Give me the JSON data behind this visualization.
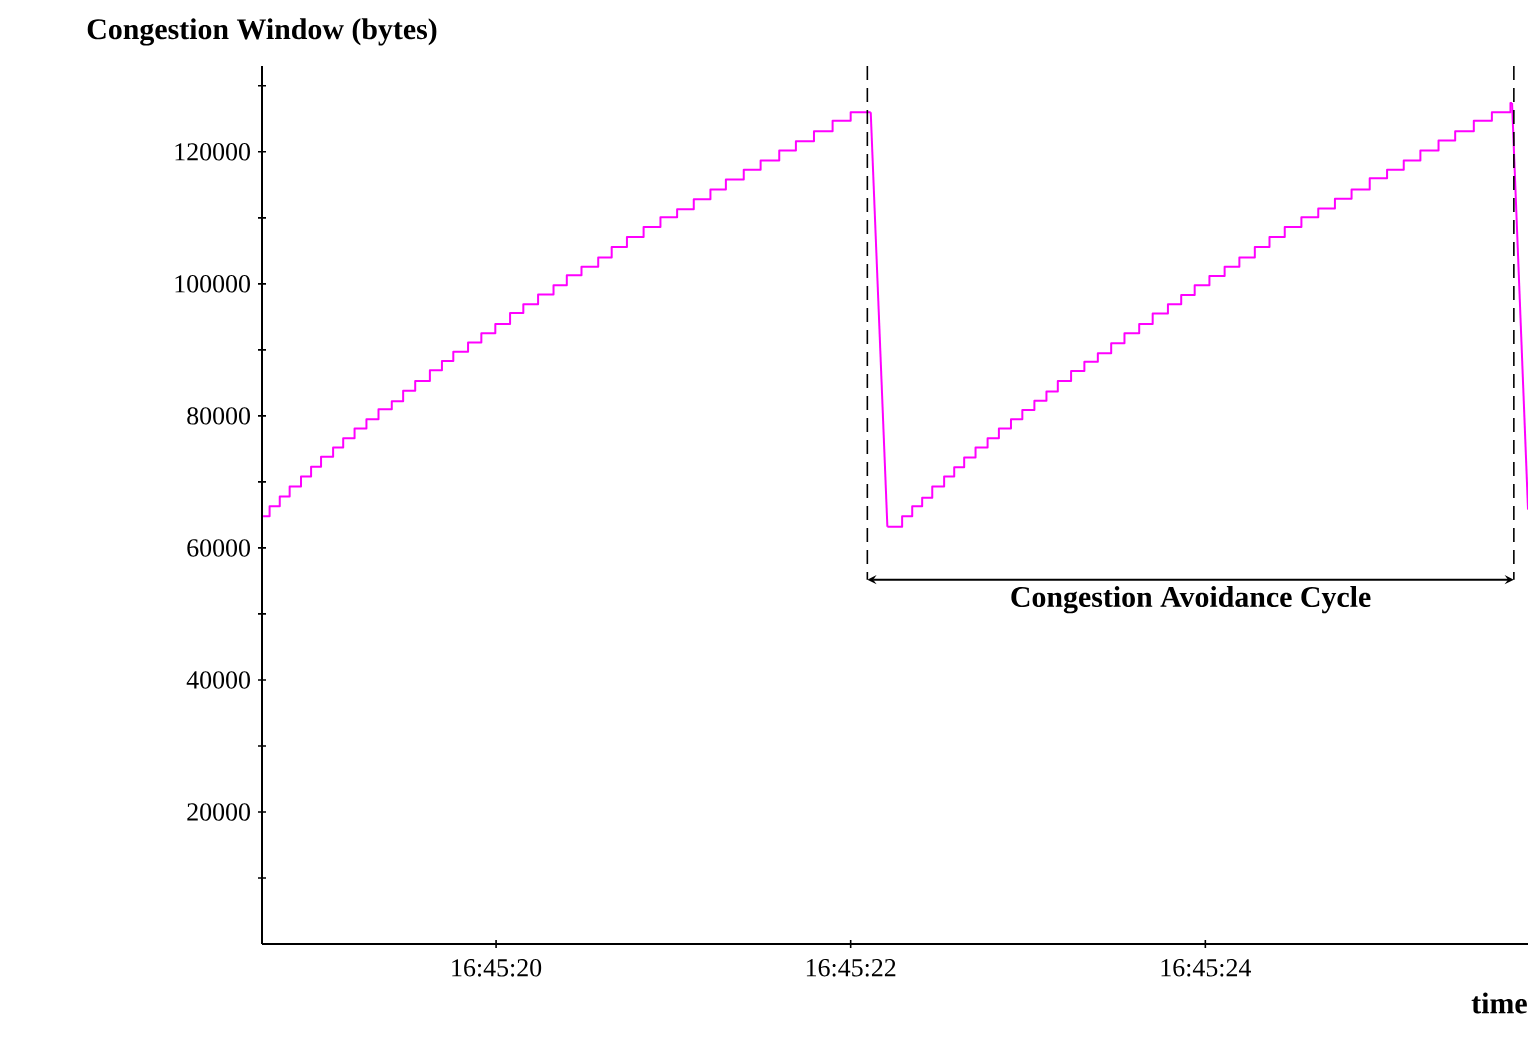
{
  "chart_data": {
    "type": "step",
    "ylabel": "Congestion Window (bytes)",
    "xlabel": "time",
    "xlim": [
      16.7551889,
      16.7571722
    ],
    "ylim": [
      0,
      133000
    ],
    "xticks": [
      {
        "value": 16.7555556,
        "label": "16:45:20"
      },
      {
        "value": 16.7561111,
        "label": "16:45:22"
      },
      {
        "value": 16.7566667,
        "label": "16:45:24"
      }
    ],
    "yticks": [
      {
        "value": 10000,
        "label": null
      },
      20000,
      {
        "value": 30000,
        "label": null
      },
      40000,
      {
        "value": 50000,
        "label": null
      },
      60000,
      {
        "value": 70000,
        "label": null
      },
      80000,
      {
        "value": 90000,
        "label": null
      },
      100000,
      {
        "value": 110000,
        "label": null
      },
      120000,
      {
        "value": 130000,
        "label": null
      }
    ],
    "series": [
      {
        "color": "#ff00ff",
        "x": [
          16.7551906,
          16.7552008,
          16.7552167,
          16.7552322,
          16.75525,
          16.7552658,
          16.7552814,
          16.7553003,
          16.7553161,
          16.7553339,
          16.7553525,
          16.7553714,
          16.7553922,
          16.75541,
          16.7554289,
          16.7554519,
          16.7554708,
          16.7554886,
          16.7555117,
          16.7555325,
          16.7555544,
          16.7555775,
          16.7555983,
          16.7556214,
          16.7556456,
          16.7556664,
          16.7556894,
          16.7557156,
          16.7557367,
          16.7557606,
          16.7557867,
          16.7558131,
          16.7558392,
          16.7558653,
          16.7558914,
          16.7559156,
          16.7559436,
          16.75597,
          16.7559992,
          16.7560253,
          16.7560536,
          16.7560828,
          16.7561111,
          16.7561425
        ],
        "values": [
          64800,
          66300,
          67800,
          69300,
          70800,
          72300,
          73800,
          75200,
          76600,
          78100,
          79500,
          81000,
          82200,
          83800,
          85300,
          86900,
          88300,
          89700,
          91100,
          92500,
          93900,
          95600,
          96900,
          98400,
          99800,
          101300,
          102600,
          104000,
          105600,
          107100,
          108600,
          110100,
          111300,
          112800,
          114300,
          115800,
          117300,
          118700,
          120200,
          121600,
          123100,
          124700,
          126000,
          126000
        ]
      },
      {
        "type": "line",
        "color": "#ff00ff",
        "x": [
          16.7561425,
          16.7561686
        ],
        "values": [
          126000,
          63200
        ]
      },
      {
        "color": "#ff00ff",
        "x": [
          16.7561686,
          16.7561917,
          16.7562075,
          16.7562231,
          16.7562389,
          16.7562575,
          16.7562733,
          16.7562889,
          16.7563067,
          16.7563256,
          16.7563433,
          16.7563622,
          16.75638,
          16.7563989,
          16.7564178,
          16.7564356,
          16.7564564,
          16.7564772,
          16.7564983,
          16.7565192,
          16.75654,
          16.7565631,
          16.7565842,
          16.7566081,
          16.7566289,
          16.75665,
          16.7566731,
          16.7566969,
          16.75672,
          16.7567442,
          16.7567672,
          16.7567911,
          16.7568172,
          16.7568436,
          16.7568697,
          16.7568958,
          16.7569242,
          16.7569514,
          16.7569775,
          16.7570036,
          16.757032,
          16.7570581,
          16.7570873,
          16.7571156,
          16.7571447,
          16.7571472
        ],
        "values": [
          63200,
          64800,
          66300,
          67600,
          69300,
          70800,
          72200,
          73700,
          75200,
          76600,
          78100,
          79500,
          80900,
          82300,
          83700,
          85300,
          86800,
          88200,
          89500,
          91000,
          92500,
          93900,
          95500,
          96900,
          98300,
          99800,
          101200,
          102600,
          104000,
          105600,
          107100,
          108600,
          110100,
          111400,
          112900,
          114300,
          116000,
          117300,
          118700,
          120200,
          121700,
          123100,
          124700,
          126000,
          127400,
          127400
        ]
      },
      {
        "type": "line",
        "color": "#ff00ff",
        "x": [
          16.7571472,
          16.7571722
        ],
        "values": [
          127400,
          65800
        ]
      }
    ],
    "ref_lines": [
      {
        "axis": "x",
        "value": 16.7561372,
        "color": "#000000",
        "line_style": "dashed"
      },
      {
        "axis": "x",
        "value": 16.75715,
        "color": "#000000",
        "line_style": "dashed"
      }
    ],
    "annotations": [
      "Congestion Avoidance Cycle"
    ]
  }
}
